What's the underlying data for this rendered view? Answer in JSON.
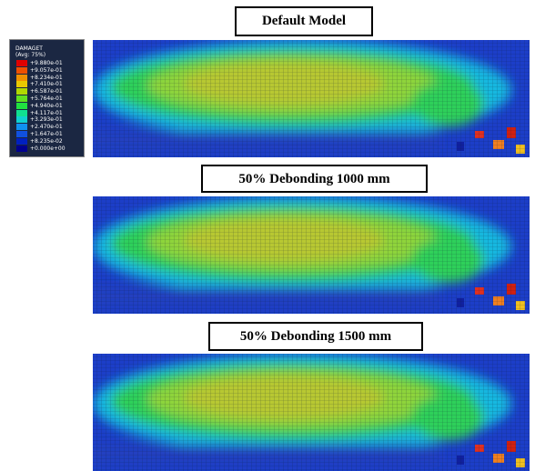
{
  "legend": {
    "title": "DAMAGET",
    "subtitle": "(Avg: 75%)",
    "values": [
      "+9.880e-01",
      "+9.057e-01",
      "+8.234e-01",
      "+7.410e-01",
      "+6.587e-01",
      "+5.764e-01",
      "+4.940e-01",
      "+4.117e-01",
      "+3.293e-01",
      "+2.470e-01",
      "+1.647e-01",
      "+8.235e-02",
      "+0.000e+00"
    ]
  },
  "panels": [
    {
      "title": "Default Model"
    },
    {
      "title": "50% Debonding 1000 mm"
    },
    {
      "title": "50% Debonding 1500 mm"
    }
  ]
}
